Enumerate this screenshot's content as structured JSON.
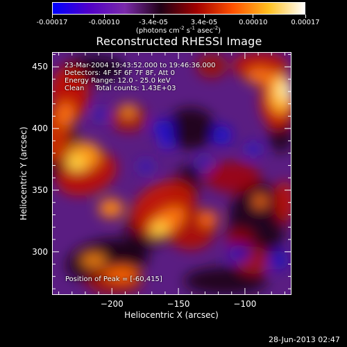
{
  "colorbar": {
    "tick_labels": [
      "-0.00017",
      "-0.00010",
      "-3.4e-05",
      "3.4e-05",
      "0.00010",
      "0.00017"
    ],
    "tick_values": [
      -0.00017,
      -0.0001,
      -3.4e-05,
      3.4e-05,
      0.0001,
      0.00017
    ],
    "range": [
      -0.00017,
      0.00017
    ],
    "units_prefix": "(photons cm",
    "units_exp1": "-2",
    "units_mid": " s",
    "units_exp2": "-1",
    "units_mid2": " asec",
    "units_exp3": "-2",
    "units_suffix": ")",
    "colormap_stops": [
      "#0000ff",
      "#5000c8",
      "#7a2aaa",
      "#200015",
      "#a00000",
      "#ff5000",
      "#ffc020",
      "#ffffff"
    ]
  },
  "chart_data": {
    "type": "heatmap",
    "title": "Reconstructed RHESSI Image",
    "xlabel": "Heliocentric X (arcsec)",
    "ylabel": "Heliocentric Y (arcsec)",
    "xlim": [
      -245,
      -65
    ],
    "ylim": [
      265,
      462
    ],
    "x_ticks": [
      -200,
      -150,
      -100
    ],
    "y_ticks": [
      300,
      350,
      400,
      450
    ],
    "x_tick_labels": [
      "−200",
      "−150",
      "−100"
    ],
    "y_tick_labels": [
      "300",
      "350",
      "400",
      "450"
    ],
    "peak_position": [
      -60,
      415
    ]
  },
  "info": {
    "line1": "23-Mar-2004 19:43:52.000 to 19:46:36.000",
    "line2": "Detectors: 4F 5F 6F 7F 8F, Att 0",
    "line3": "Energy Range: 12.0 - 25.0 keV",
    "line4": "Clean     Total counts: 1.43E+03",
    "peak": "Position of Peak = [-60,415]"
  },
  "footer": {
    "date": "28-Jun-2013 02:47"
  }
}
